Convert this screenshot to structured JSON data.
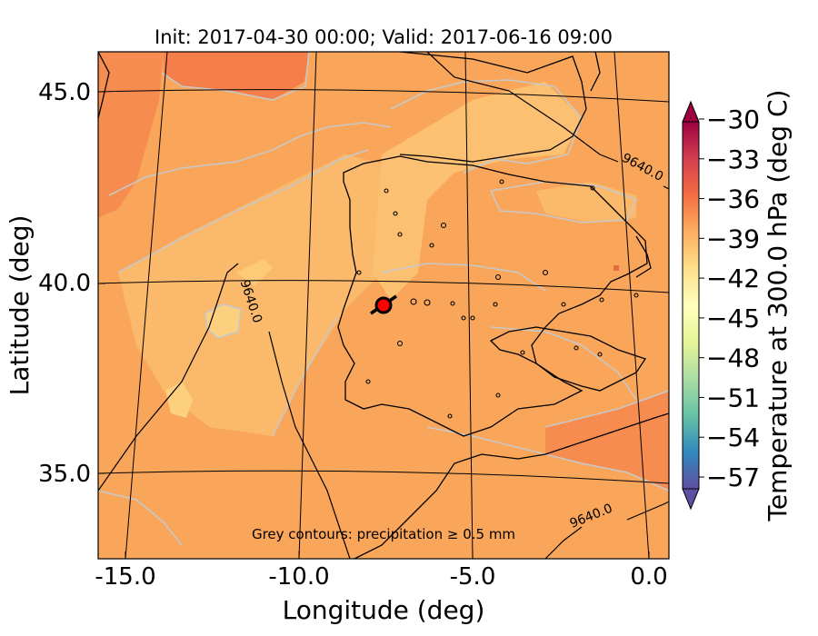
{
  "title": "Init: 2017-04-30 00:00; Valid: 2017-06-16 09:00",
  "xlabel": "Longitude (deg)",
  "ylabel": "Latitude (deg)",
  "x_ticks": [
    "-15.0",
    "-10.0",
    "-5.0",
    "0.0"
  ],
  "y_ticks": [
    "45.0",
    "40.0",
    "35.0"
  ],
  "colorbar": {
    "label": "Temperature at 300.0 hPa (deg C)",
    "ticks": [
      "−30",
      "−33",
      "−36",
      "−39",
      "−42",
      "−45",
      "−48",
      "−51",
      "−54",
      "−57"
    ],
    "colormap": "Spectral"
  },
  "contour_labels": [
    "9640.0",
    "9640.0",
    "9640.0"
  ],
  "note": "Grey contours: precipitation ≥ 0.5 mm",
  "marker": {
    "lon": -7.7,
    "lat": 39.3,
    "color": "#ff0000"
  },
  "colors": {
    "field_base": "#f9a65a",
    "field_warm": "#f57f4a",
    "field_cool": "#fcc072",
    "field_light": "#fdd07f",
    "precip_contour": "#c8c8c8",
    "height_contour": "#000000",
    "coastline": "#000000"
  }
}
